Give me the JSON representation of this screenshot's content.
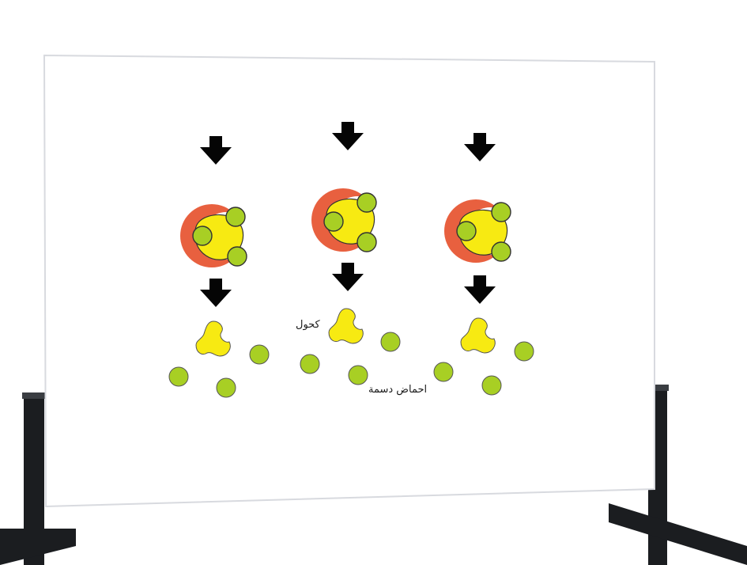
{
  "labels": {
    "alcohol": "كحول",
    "fatty_acids": "احماض دسمة"
  },
  "colors": {
    "board": "#ffffff",
    "board_edge": "#d8dadf",
    "stand": "#1b1d20",
    "enzyme": "#e8603f",
    "glycerol": "#f7ea12",
    "fatty_acid": "#a8cf24",
    "outline": "#333333",
    "arrow": "#050505"
  }
}
